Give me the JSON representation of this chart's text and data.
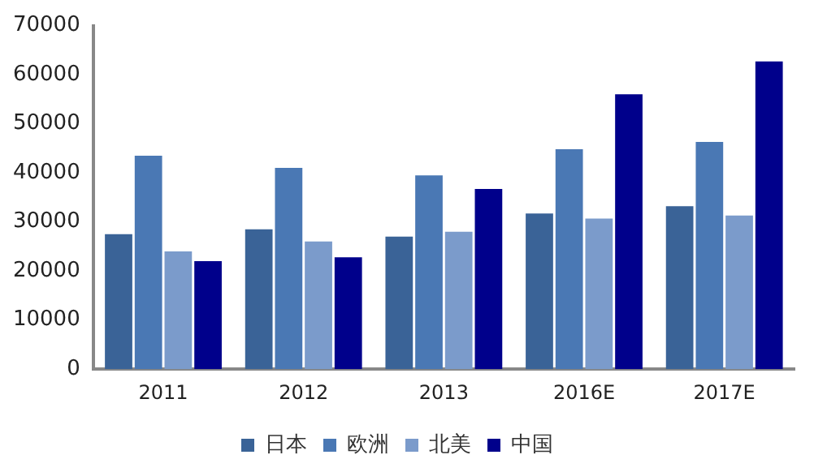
{
  "chart_data": {
    "type": "bar",
    "categories": [
      "2011",
      "2012",
      "2013",
      "2016E",
      "2017E"
    ],
    "series": [
      {
        "name": "日本",
        "color": "#3a6397",
        "values": [
          27500,
          28500,
          27000,
          31700,
          33200
        ]
      },
      {
        "name": "欧洲",
        "color": "#4a78b4",
        "values": [
          43500,
          41000,
          39500,
          44800,
          46300
        ]
      },
      {
        "name": "北美",
        "color": "#7b9bcb",
        "values": [
          24000,
          26000,
          28000,
          30700,
          31300
        ]
      },
      {
        "name": "中国",
        "color": "#00008b",
        "values": [
          22000,
          22800,
          36700,
          56000,
          62700
        ]
      }
    ],
    "ylim": [
      0,
      70000
    ],
    "yticks": [
      0,
      10000,
      20000,
      30000,
      40000,
      50000,
      60000,
      70000
    ],
    "grid": false,
    "legend": "bottom"
  }
}
